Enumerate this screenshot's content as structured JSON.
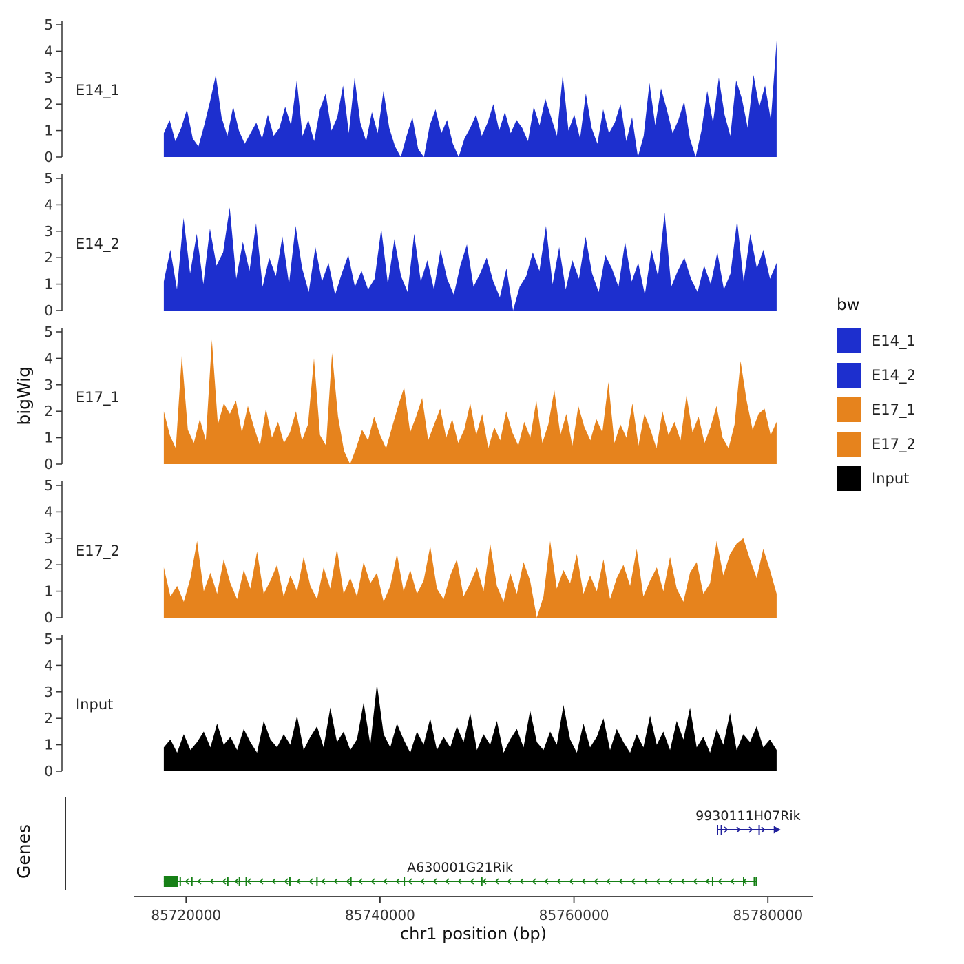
{
  "ylab": "bigWig",
  "genes_lab": "Genes",
  "xlab": "chr1 position (bp)",
  "legend": {
    "title": "bw",
    "entries": [
      {
        "label": "E14_1",
        "color": "#1d2fce"
      },
      {
        "label": "E14_2",
        "color": "#1d2fce"
      },
      {
        "label": "E17_1",
        "color": "#e6831d"
      },
      {
        "label": "E17_2",
        "color": "#e6831d"
      },
      {
        "label": "Input",
        "color": "#000000"
      }
    ]
  },
  "chart_data": {
    "type": "area",
    "title": "",
    "xlabel": "chr1 position (bp)",
    "ylabel": "bigWig",
    "y_max": 5,
    "y_ticks": [
      0,
      1,
      2,
      3,
      4,
      5
    ],
    "x_domain": [
      85707200,
      85784600
    ],
    "x_ticks": [
      {
        "bp": 85720000,
        "label": "85720000"
      },
      {
        "bp": 85740000,
        "label": "85740000"
      },
      {
        "bp": 85760000,
        "label": "85760000"
      },
      {
        "bp": 85780000,
        "label": "85780000"
      }
    ],
    "tracks": [
      {
        "name": "E14_1",
        "color": "#1d2fce",
        "start_bp": 85717700,
        "end_bp": 85780900,
        "values": [
          0.9,
          1.4,
          0.6,
          1.1,
          1.8,
          0.7,
          0.4,
          1.2,
          2.1,
          3.1,
          1.5,
          0.8,
          1.9,
          1.0,
          0.5,
          0.9,
          1.3,
          0.7,
          1.6,
          0.8,
          1.1,
          1.9,
          1.2,
          2.9,
          0.8,
          1.4,
          0.6,
          1.8,
          2.4,
          1.0,
          1.5,
          2.7,
          0.9,
          3.0,
          1.3,
          0.6,
          1.7,
          0.9,
          2.5,
          1.1,
          0.4,
          0.0,
          0.8,
          1.5,
          0.3,
          0.0,
          1.2,
          1.8,
          0.9,
          1.4,
          0.5,
          0.0,
          0.7,
          1.1,
          1.6,
          0.8,
          1.3,
          2.0,
          1.0,
          1.7,
          0.9,
          1.4,
          1.1,
          0.6,
          1.9,
          1.2,
          2.2,
          1.5,
          0.8,
          3.1,
          1.0,
          1.6,
          0.7,
          2.4,
          1.1,
          0.5,
          1.8,
          0.9,
          1.3,
          2.0,
          0.6,
          1.5,
          0.0,
          0.8,
          2.8,
          1.2,
          2.6,
          1.8,
          0.9,
          1.4,
          2.1,
          0.7,
          0.0,
          1.0,
          2.5,
          1.3,
          3.0,
          1.6,
          0.8,
          2.9,
          2.2,
          1.1,
          3.1,
          1.9,
          2.7,
          1.4,
          4.4
        ]
      },
      {
        "name": "E14_2",
        "color": "#1d2fce",
        "start_bp": 85717700,
        "end_bp": 85780900,
        "values": [
          1.1,
          2.3,
          0.8,
          3.5,
          1.4,
          2.9,
          1.0,
          3.1,
          1.7,
          2.2,
          3.9,
          1.2,
          2.6,
          1.5,
          3.3,
          0.9,
          2.0,
          1.3,
          2.8,
          1.0,
          3.2,
          1.6,
          0.7,
          2.4,
          1.1,
          1.8,
          0.6,
          1.4,
          2.1,
          0.9,
          1.5,
          0.8,
          1.2,
          3.1,
          1.0,
          2.7,
          1.3,
          0.7,
          2.9,
          1.1,
          1.9,
          0.8,
          2.3,
          1.2,
          0.6,
          1.7,
          2.5,
          0.9,
          1.4,
          2.0,
          1.1,
          0.5,
          1.6,
          0.0,
          0.9,
          1.3,
          2.2,
          1.5,
          3.2,
          1.0,
          2.4,
          0.8,
          1.9,
          1.2,
          2.8,
          1.4,
          0.7,
          2.1,
          1.6,
          0.9,
          2.6,
          1.1,
          1.8,
          0.6,
          2.3,
          1.3,
          3.7,
          0.9,
          1.5,
          2.0,
          1.2,
          0.7,
          1.7,
          1.0,
          2.2,
          0.8,
          1.4,
          3.4,
          1.1,
          2.9,
          1.6,
          2.3,
          1.2,
          1.8
        ]
      },
      {
        "name": "E17_1",
        "color": "#e6831d",
        "start_bp": 85717700,
        "end_bp": 85780900,
        "values": [
          2.0,
          1.1,
          0.6,
          4.1,
          1.3,
          0.8,
          1.7,
          0.9,
          4.7,
          1.5,
          2.3,
          1.9,
          2.4,
          1.2,
          2.2,
          1.4,
          0.7,
          2.1,
          1.0,
          1.6,
          0.8,
          1.2,
          2.0,
          0.9,
          1.5,
          4.0,
          1.1,
          0.7,
          4.2,
          1.8,
          0.5,
          0.0,
          0.6,
          1.3,
          0.9,
          1.8,
          1.1,
          0.6,
          1.4,
          2.2,
          2.9,
          1.2,
          1.8,
          2.5,
          0.9,
          1.5,
          2.1,
          1.0,
          1.7,
          0.8,
          1.3,
          2.3,
          1.1,
          1.9,
          0.6,
          1.4,
          0.9,
          2.0,
          1.2,
          0.7,
          1.6,
          1.0,
          2.4,
          0.8,
          1.5,
          2.8,
          1.1,
          1.9,
          0.7,
          2.2,
          1.4,
          0.9,
          1.7,
          1.2,
          3.1,
          0.8,
          1.5,
          1.0,
          2.3,
          0.7,
          1.9,
          1.3,
          0.6,
          2.0,
          1.1,
          1.6,
          0.9,
          2.6,
          1.2,
          1.8,
          0.8,
          1.4,
          2.2,
          1.0,
          0.6,
          1.5,
          3.9,
          2.4,
          1.3,
          1.9,
          2.1,
          1.1,
          1.6
        ]
      },
      {
        "name": "E17_2",
        "color": "#e6831d",
        "start_bp": 85717700,
        "end_bp": 85780900,
        "values": [
          1.9,
          0.8,
          1.2,
          0.6,
          1.5,
          2.9,
          1.0,
          1.7,
          0.9,
          2.2,
          1.3,
          0.7,
          1.8,
          1.1,
          2.5,
          0.9,
          1.4,
          2.0,
          0.8,
          1.6,
          1.0,
          2.3,
          1.2,
          0.7,
          1.9,
          1.1,
          2.6,
          0.9,
          1.5,
          0.8,
          2.1,
          1.3,
          1.7,
          0.6,
          1.2,
          2.4,
          1.0,
          1.8,
          0.9,
          1.4,
          2.7,
          1.1,
          0.7,
          1.6,
          2.2,
          0.8,
          1.3,
          1.9,
          1.0,
          2.8,
          1.2,
          0.6,
          1.7,
          0.9,
          2.1,
          1.4,
          0.0,
          0.8,
          2.9,
          1.1,
          1.8,
          1.3,
          2.4,
          0.9,
          1.6,
          1.0,
          2.2,
          0.7,
          1.5,
          2.0,
          1.2,
          2.6,
          0.8,
          1.4,
          1.9,
          1.0,
          2.3,
          1.1,
          0.6,
          1.7,
          2.1,
          0.9,
          1.3,
          2.9,
          1.6,
          2.4,
          2.8,
          3.0,
          2.2,
          1.5,
          2.6,
          1.8,
          0.9
        ]
      },
      {
        "name": "Input",
        "color": "#000000",
        "start_bp": 85717700,
        "end_bp": 85780900,
        "values": [
          0.9,
          1.2,
          0.7,
          1.4,
          0.8,
          1.1,
          1.5,
          0.9,
          1.8,
          1.0,
          1.3,
          0.8,
          1.6,
          1.1,
          0.7,
          1.9,
          1.2,
          0.9,
          1.4,
          1.0,
          2.1,
          0.8,
          1.3,
          1.7,
          0.9,
          2.4,
          1.1,
          1.5,
          0.8,
          1.2,
          2.6,
          1.0,
          3.3,
          1.4,
          0.9,
          1.8,
          1.2,
          0.7,
          1.5,
          1.0,
          2.0,
          0.8,
          1.3,
          0.9,
          1.7,
          1.1,
          2.2,
          0.8,
          1.4,
          1.0,
          1.9,
          0.7,
          1.2,
          1.6,
          0.9,
          2.3,
          1.1,
          0.8,
          1.5,
          1.0,
          2.5,
          1.2,
          0.7,
          1.8,
          0.9,
          1.3,
          2.0,
          0.8,
          1.6,
          1.1,
          0.7,
          1.4,
          0.9,
          2.1,
          1.0,
          1.5,
          0.8,
          1.9,
          1.2,
          2.4,
          0.9,
          1.3,
          0.7,
          1.6,
          1.0,
          2.2,
          0.8,
          1.4,
          1.1,
          1.7,
          0.9,
          1.2,
          0.8
        ]
      }
    ],
    "genes": [
      {
        "name": "9930111H07Rik",
        "color": "#20209c",
        "strand": "+",
        "start_bp": 85774800,
        "end_bp": 85781100,
        "exon_ticks": [
          85775200,
          85779100
        ],
        "thick_box": null
      },
      {
        "name": "A630001G21Rik",
        "color": "#168016",
        "strand": "-",
        "start_bp": 85717700,
        "end_bp": 85778800,
        "exon_ticks": [
          85719400,
          85720600,
          85724300,
          85725500,
          85726200,
          85730700,
          85733500,
          85737000,
          85742500,
          85750500,
          85774300,
          85777500,
          85778600
        ],
        "thick_box": [
          85717700,
          85719200
        ]
      }
    ]
  }
}
